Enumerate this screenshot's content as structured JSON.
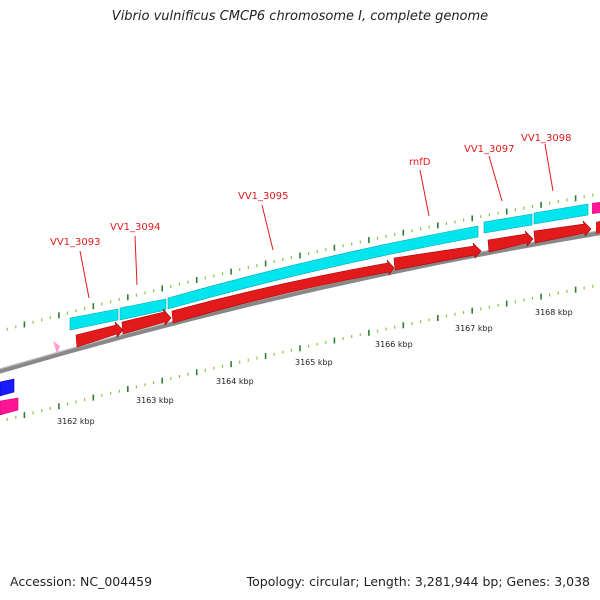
{
  "title": "Vibrio vulnificus CMCP6 chromosome I, complete genome",
  "footer": {
    "accession": "Accession: NC_004459",
    "summary": "Topology: circular; Length: 3,281,944 bp; Genes: 3,038"
  },
  "colors": {
    "cds_top": "#00e5ee",
    "cds_bottom": "#e31a1c",
    "backbone": "#888888",
    "tick_dark": "#2e7d32",
    "tick_light": "#8bc34a",
    "rna": "#ff1493",
    "other": "#1a1aff"
  },
  "gene_labels": [
    {
      "text": "VV1_3093"
    },
    {
      "text": "VV1_3094"
    },
    {
      "text": "VV1_3095"
    },
    {
      "text": "rnfD"
    },
    {
      "text": "VV1_3097"
    },
    {
      "text": "VV1_3098"
    }
  ],
  "scale_labels": [
    {
      "text": "3162 kbp"
    },
    {
      "text": "3163 kbp"
    },
    {
      "text": "3164 kbp"
    },
    {
      "text": "3165 kbp"
    },
    {
      "text": "3166 kbp"
    },
    {
      "text": "3167 kbp"
    },
    {
      "text": "3168 kbp"
    }
  ]
}
